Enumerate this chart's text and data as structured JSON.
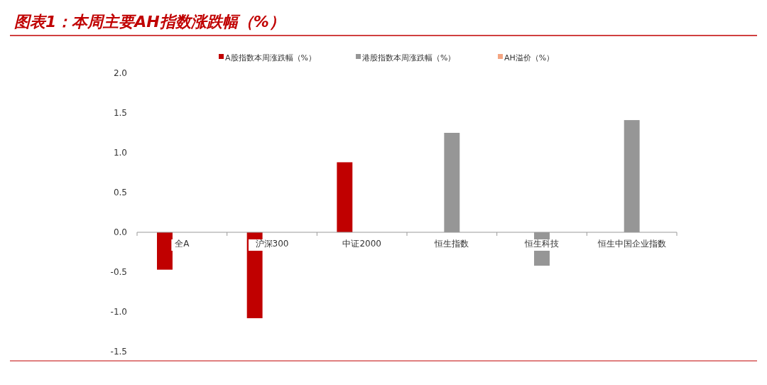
{
  "chart_data": {
    "type": "bar",
    "title": "图表1：本周主要AH指数涨跌幅（%）",
    "categories": [
      "全A",
      "沪深300",
      "中证2000",
      "恒生指数",
      "恒生科技",
      "恒生中国企业指数"
    ],
    "series": [
      {
        "name": "A股指数本周涨跌幅（%）",
        "color": "#c00000",
        "values": [
          -0.47,
          -1.08,
          0.88,
          null,
          null,
          null
        ]
      },
      {
        "name": "港股指数本周涨跌幅（%）",
        "color": "#969696",
        "values": [
          null,
          null,
          null,
          1.25,
          -0.42,
          1.41
        ]
      },
      {
        "name": "AH溢价（%）",
        "color": "#f4a582",
        "values": [
          null,
          null,
          null,
          null,
          null,
          null
        ]
      }
    ],
    "ylim": [
      -1.5,
      2.0
    ],
    "yticks": [
      {
        "value": -1.5,
        "label": "-1.5"
      },
      {
        "value": -1,
        "label": "-1.0"
      },
      {
        "value": -0.5,
        "label": "-0.5"
      },
      {
        "value": 0,
        "label": "0.0"
      },
      {
        "value": 0.5,
        "label": "0.5"
      },
      {
        "value": 1,
        "label": "1.0"
      },
      {
        "value": 1.5,
        "label": "1.5"
      },
      {
        "value": 2,
        "label": "2.0"
      }
    ],
    "grid": false,
    "legend": "top"
  }
}
